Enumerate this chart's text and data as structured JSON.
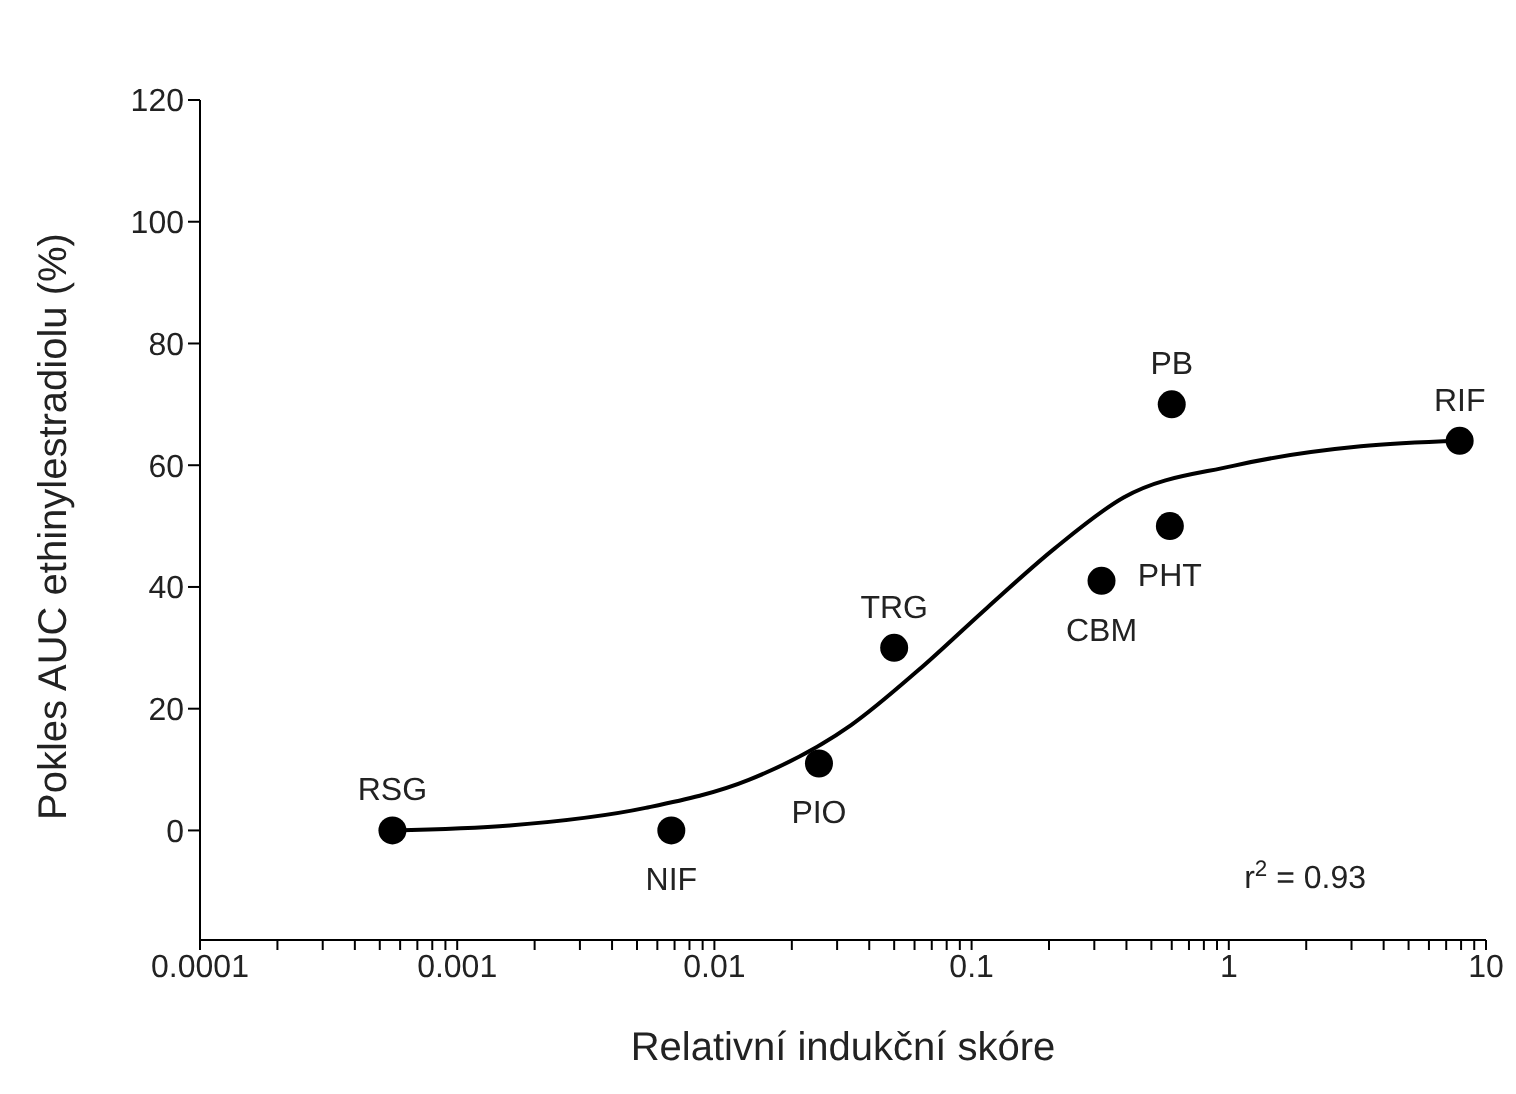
{
  "chart_data": {
    "type": "scatter",
    "xlabel": "Relativní indukční skóre",
    "ylabel": "Pokles AUC ethinylestradiolu (%)",
    "log": "x",
    "grid": false,
    "legend": false,
    "marker": "circle",
    "xlim": [
      0.0001,
      10
    ],
    "ylim": [
      -18,
      120
    ],
    "xticks": [
      0.0001,
      {
        "value": 0.0002,
        "label": null
      },
      {
        "value": 0.0003,
        "label": null
      },
      {
        "value": 0.0004,
        "label": null
      },
      {
        "value": 0.0005,
        "label": null
      },
      {
        "value": 0.0006,
        "label": null
      },
      {
        "value": 0.0007,
        "label": null
      },
      {
        "value": 0.0008,
        "label": null
      },
      {
        "value": 0.0009,
        "label": null
      },
      0.001,
      {
        "value": 0.002,
        "label": null
      },
      {
        "value": 0.003,
        "label": null
      },
      {
        "value": 0.004,
        "label": null
      },
      {
        "value": 0.005,
        "label": null
      },
      {
        "value": 0.006,
        "label": null
      },
      {
        "value": 0.007,
        "label": null
      },
      {
        "value": 0.008,
        "label": null
      },
      {
        "value": 0.009,
        "label": null
      },
      0.01,
      {
        "value": 0.02,
        "label": null
      },
      {
        "value": 0.03,
        "label": null
      },
      {
        "value": 0.04,
        "label": null
      },
      {
        "value": 0.05,
        "label": null
      },
      {
        "value": 0.06,
        "label": null
      },
      {
        "value": 0.07,
        "label": null
      },
      {
        "value": 0.08,
        "label": null
      },
      {
        "value": 0.09,
        "label": null
      },
      0.1,
      {
        "value": 0.2,
        "label": null
      },
      {
        "value": 0.3,
        "label": null
      },
      {
        "value": 0.4,
        "label": null
      },
      {
        "value": 0.5,
        "label": null
      },
      {
        "value": 0.6,
        "label": null
      },
      {
        "value": 0.7,
        "label": null
      },
      {
        "value": 0.8,
        "label": null
      },
      {
        "value": 0.9,
        "label": null
      },
      1,
      {
        "value": 2,
        "label": null
      },
      {
        "value": 3,
        "label": null
      },
      {
        "value": 4,
        "label": null
      },
      {
        "value": 5,
        "label": null
      },
      {
        "value": 6,
        "label": null
      },
      {
        "value": 7,
        "label": null
      },
      {
        "value": 8,
        "label": null
      },
      {
        "value": 9,
        "label": null
      },
      10
    ],
    "yticks": [
      0,
      20,
      40,
      60,
      80,
      100,
      120
    ],
    "series": [
      {
        "color": "#000000",
        "x": [
          0.00056,
          0.0068,
          0.0255,
          0.05,
          0.32,
          0.59,
          0.6,
          7.9
        ],
        "values": [
          0,
          0,
          11,
          30,
          41,
          50,
          70,
          64
        ]
      },
      {
        "type": "line",
        "color": "#000000",
        "marker": "none",
        "line_style": "solid",
        "x": [
          0.00056,
          0.0016,
          0.0054,
          0.0136,
          0.034,
          0.062,
          0.115,
          0.21,
          0.39,
          1.04,
          3.26,
          7.9
        ],
        "values": [
          0,
          0.8,
          3.7,
          8.3,
          17.3,
          26.3,
          36.6,
          46.3,
          54.7,
          59.9,
          63.1,
          64
        ]
      }
    ],
    "annotations": [
      {
        "text": "RSG",
        "x": 0.00056,
        "y": 0
      },
      {
        "text": "NIF",
        "x": 0.0068,
        "y": 0
      },
      {
        "text": "PIO",
        "x": 0.0255,
        "y": 11
      },
      {
        "text": "TRG",
        "x": 0.05,
        "y": 30
      },
      {
        "text": "CBM",
        "x": 0.32,
        "y": 41
      },
      {
        "text": "PHT",
        "x": 0.59,
        "y": 50
      },
      {
        "text": "PB",
        "x": 0.6,
        "y": 70
      },
      {
        "text": "RIF",
        "x": 7.9,
        "y": 64
      },
      "r$^{2}$ = 0.93"
    ]
  }
}
